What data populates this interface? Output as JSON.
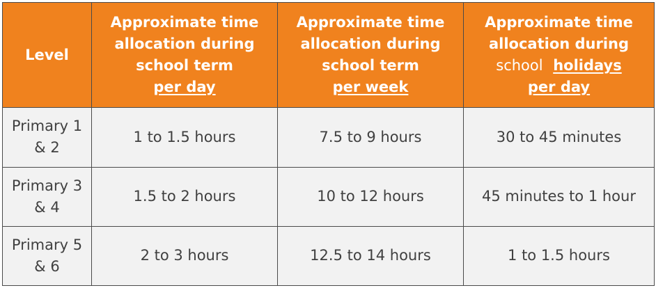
{
  "table": {
    "headers": {
      "level": "Level",
      "per_day_term": {
        "lines": [
          "Approximate time",
          "allocation during",
          "school term"
        ],
        "emphasis": "per day"
      },
      "per_week_term": {
        "lines": [
          "Approximate time",
          "allocation during",
          "school term"
        ],
        "emphasis": "per week"
      },
      "per_day_holidays": {
        "lines": [
          "Approximate time",
          "allocation during"
        ],
        "school_word": "school",
        "holidays_word": "holidays",
        "emphasis": "per day"
      }
    },
    "rows": [
      {
        "level_line1": "Primary 1",
        "level_line2": "& 2",
        "per_day": "1 to 1.5 hours",
        "per_week": "7.5 to 9 hours",
        "holidays": "30 to 45 minutes"
      },
      {
        "level_line1": "Primary 3",
        "level_line2": "& 4",
        "per_day": "1.5 to 2 hours",
        "per_week": "10 to 12 hours",
        "holidays": "45 minutes to 1 hour"
      },
      {
        "level_line1": "Primary 5",
        "level_line2": "& 6",
        "per_day": "2 to 3 hours",
        "per_week": "12.5 to 14 hours",
        "holidays": "1 to 1.5 hours"
      }
    ],
    "colors": {
      "header_bg": "#f0821e",
      "header_text": "#ffffff",
      "cell_bg": "#f2f2f2",
      "cell_text": "#404040",
      "border": "#4a4a4a"
    }
  }
}
